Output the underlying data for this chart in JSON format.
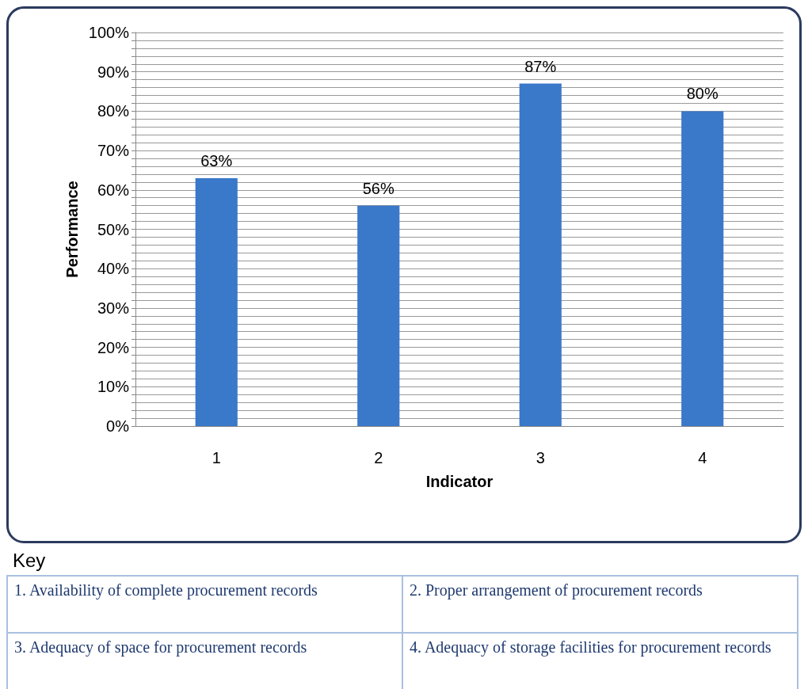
{
  "chart_data": {
    "type": "bar",
    "xlabel": "Indicator",
    "ylabel": "Performance",
    "categories": [
      "1",
      "2",
      "3",
      "4"
    ],
    "values": [
      63,
      56,
      87,
      80
    ],
    "value_labels": [
      "63%",
      "56%",
      "87%",
      "80%"
    ],
    "color": "#3a78c9",
    "ylim": [
      0,
      100
    ],
    "yticks": [
      {
        "value": 0,
        "label": "0%"
      },
      {
        "value": 2,
        "label": null
      },
      {
        "value": 4,
        "label": null
      },
      {
        "value": 6,
        "label": null
      },
      {
        "value": 8,
        "label": null
      },
      {
        "value": 10,
        "label": "10%"
      },
      {
        "value": 12,
        "label": null
      },
      {
        "value": 14,
        "label": null
      },
      {
        "value": 16,
        "label": null
      },
      {
        "value": 18,
        "label": null
      },
      {
        "value": 20,
        "label": "20%"
      },
      {
        "value": 22,
        "label": null
      },
      {
        "value": 24,
        "label": null
      },
      {
        "value": 26,
        "label": null
      },
      {
        "value": 28,
        "label": null
      },
      {
        "value": 30,
        "label": "30%"
      },
      {
        "value": 32,
        "label": null
      },
      {
        "value": 34,
        "label": null
      },
      {
        "value": 36,
        "label": null
      },
      {
        "value": 38,
        "label": null
      },
      {
        "value": 40,
        "label": "40%"
      },
      {
        "value": 42,
        "label": null
      },
      {
        "value": 44,
        "label": null
      },
      {
        "value": 46,
        "label": null
      },
      {
        "value": 48,
        "label": null
      },
      {
        "value": 50,
        "label": "50%"
      },
      {
        "value": 52,
        "label": null
      },
      {
        "value": 54,
        "label": null
      },
      {
        "value": 56,
        "label": null
      },
      {
        "value": 58,
        "label": null
      },
      {
        "value": 60,
        "label": "60%"
      },
      {
        "value": 62,
        "label": null
      },
      {
        "value": 64,
        "label": null
      },
      {
        "value": 66,
        "label": null
      },
      {
        "value": 68,
        "label": null
      },
      {
        "value": 70,
        "label": "70%"
      },
      {
        "value": 72,
        "label": null
      },
      {
        "value": 74,
        "label": null
      },
      {
        "value": 76,
        "label": null
      },
      {
        "value": 78,
        "label": null
      },
      {
        "value": 80,
        "label": "80%"
      },
      {
        "value": 82,
        "label": null
      },
      {
        "value": 84,
        "label": null
      },
      {
        "value": 86,
        "label": null
      },
      {
        "value": 88,
        "label": null
      },
      {
        "value": 90,
        "label": "90%"
      },
      {
        "value": 92,
        "label": null
      },
      {
        "value": 94,
        "label": null
      },
      {
        "value": 96,
        "label": null
      },
      {
        "value": 98,
        "label": null
      },
      {
        "value": 100,
        "label": "100%"
      }
    ],
    "grid": "y",
    "annotations": [
      "Key",
      "1. Availability of complete procurement records",
      "2.  Proper arrangement of procurement records",
      "3.   Adequacy of space for procurement records",
      "4.  Adequacy of storage facilities for procurement records"
    ]
  }
}
